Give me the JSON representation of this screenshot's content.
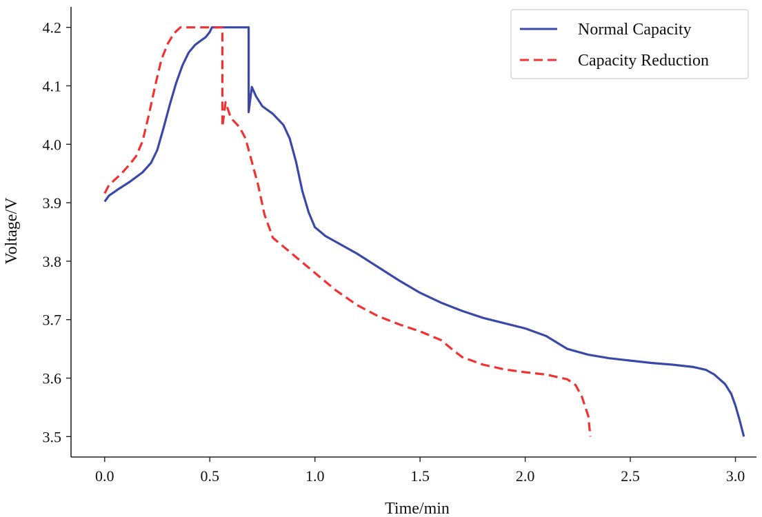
{
  "chart_data": {
    "type": "line",
    "title": "",
    "xlabel": "Time/min",
    "ylabel": "Voltage/V",
    "xlim": [
      -0.16,
      3.1
    ],
    "ylim": [
      3.465,
      4.235
    ],
    "xticks": [
      "0.0",
      "0.5",
      "1.0",
      "1.5",
      "2.0",
      "2.5",
      "3.0"
    ],
    "yticks": [
      "3.5",
      "3.6",
      "3.7",
      "3.8",
      "3.9",
      "4.0",
      "4.1",
      "4.2"
    ],
    "legend_position": "top-right",
    "series": [
      {
        "name": "Normal Capacity",
        "color": "#3a48a8",
        "style": "solid",
        "points": [
          [
            0.0,
            3.902
          ],
          [
            0.02,
            3.912
          ],
          [
            0.06,
            3.922
          ],
          [
            0.12,
            3.936
          ],
          [
            0.18,
            3.952
          ],
          [
            0.22,
            3.968
          ],
          [
            0.25,
            3.99
          ],
          [
            0.28,
            4.028
          ],
          [
            0.31,
            4.068
          ],
          [
            0.34,
            4.105
          ],
          [
            0.37,
            4.135
          ],
          [
            0.4,
            4.157
          ],
          [
            0.43,
            4.17
          ],
          [
            0.46,
            4.178
          ],
          [
            0.48,
            4.183
          ],
          [
            0.5,
            4.192
          ],
          [
            0.51,
            4.2
          ],
          [
            0.685,
            4.2
          ],
          [
            0.685,
            4.055
          ],
          [
            0.7,
            4.098
          ],
          [
            0.72,
            4.082
          ],
          [
            0.75,
            4.065
          ],
          [
            0.8,
            4.052
          ],
          [
            0.85,
            4.033
          ],
          [
            0.88,
            4.01
          ],
          [
            0.91,
            3.97
          ],
          [
            0.94,
            3.92
          ],
          [
            0.97,
            3.884
          ],
          [
            1.0,
            3.858
          ],
          [
            1.05,
            3.843
          ],
          [
            1.1,
            3.833
          ],
          [
            1.2,
            3.813
          ],
          [
            1.3,
            3.79
          ],
          [
            1.4,
            3.767
          ],
          [
            1.5,
            3.746
          ],
          [
            1.6,
            3.729
          ],
          [
            1.7,
            3.715
          ],
          [
            1.8,
            3.703
          ],
          [
            1.9,
            3.694
          ],
          [
            2.0,
            3.685
          ],
          [
            2.1,
            3.672
          ],
          [
            2.2,
            3.65
          ],
          [
            2.3,
            3.64
          ],
          [
            2.4,
            3.634
          ],
          [
            2.5,
            3.63
          ],
          [
            2.6,
            3.626
          ],
          [
            2.7,
            3.623
          ],
          [
            2.8,
            3.619
          ],
          [
            2.86,
            3.614
          ],
          [
            2.9,
            3.606
          ],
          [
            2.95,
            3.59
          ],
          [
            2.98,
            3.573
          ],
          [
            3.0,
            3.553
          ],
          [
            3.02,
            3.528
          ],
          [
            3.04,
            3.5
          ]
        ]
      },
      {
        "name": "Capacity Reduction",
        "color": "#f03232",
        "style": "dashed",
        "points": [
          [
            0.0,
            3.916
          ],
          [
            0.02,
            3.93
          ],
          [
            0.05,
            3.94
          ],
          [
            0.08,
            3.95
          ],
          [
            0.12,
            3.966
          ],
          [
            0.15,
            3.98
          ],
          [
            0.18,
            4.005
          ],
          [
            0.21,
            4.05
          ],
          [
            0.24,
            4.1
          ],
          [
            0.27,
            4.145
          ],
          [
            0.3,
            4.172
          ],
          [
            0.33,
            4.19
          ],
          [
            0.36,
            4.2
          ],
          [
            0.56,
            4.2
          ],
          [
            0.56,
            4.03
          ],
          [
            0.575,
            4.072
          ],
          [
            0.6,
            4.045
          ],
          [
            0.64,
            4.03
          ],
          [
            0.67,
            4.01
          ],
          [
            0.7,
            3.97
          ],
          [
            0.73,
            3.93
          ],
          [
            0.76,
            3.88
          ],
          [
            0.8,
            3.84
          ],
          [
            0.85,
            3.825
          ],
          [
            0.9,
            3.81
          ],
          [
            1.0,
            3.78
          ],
          [
            1.1,
            3.75
          ],
          [
            1.2,
            3.725
          ],
          [
            1.3,
            3.706
          ],
          [
            1.4,
            3.692
          ],
          [
            1.5,
            3.68
          ],
          [
            1.6,
            3.665
          ],
          [
            1.65,
            3.65
          ],
          [
            1.7,
            3.636
          ],
          [
            1.8,
            3.623
          ],
          [
            1.9,
            3.615
          ],
          [
            2.0,
            3.61
          ],
          [
            2.1,
            3.606
          ],
          [
            2.2,
            3.598
          ],
          [
            2.24,
            3.588
          ],
          [
            2.27,
            3.568
          ],
          [
            2.3,
            3.535
          ],
          [
            2.31,
            3.5
          ]
        ]
      }
    ]
  }
}
